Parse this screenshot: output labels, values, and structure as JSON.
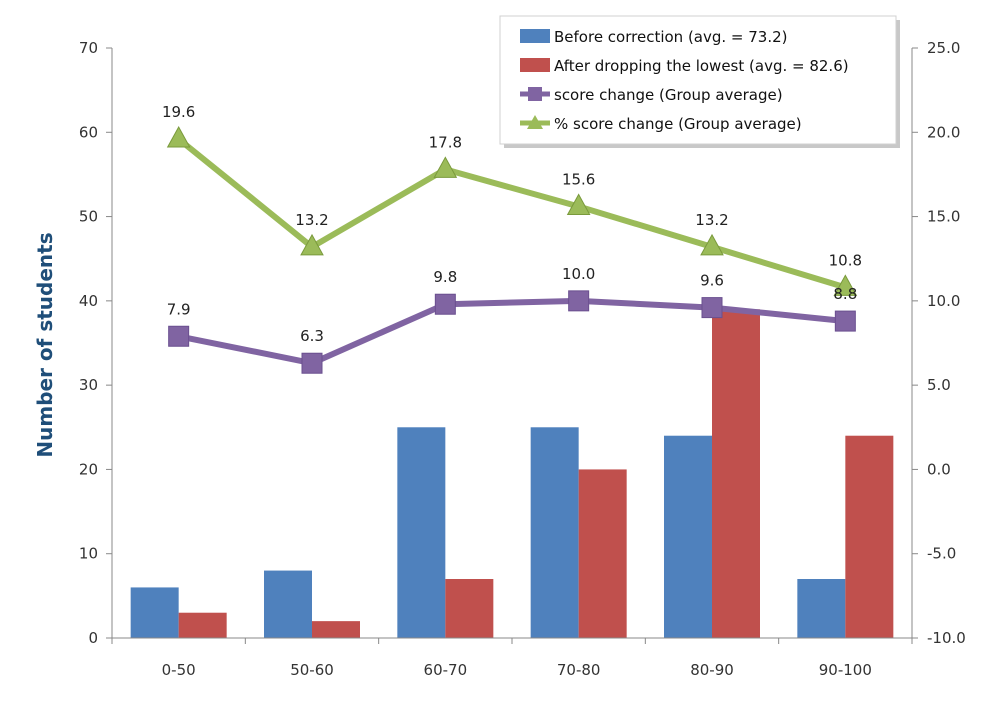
{
  "chart_data": {
    "type": "bar",
    "title": "",
    "xlabel": "",
    "ylabel": "Number of students",
    "y2label": "",
    "categories": [
      "0-50",
      "50-60",
      "60-70",
      "70-80",
      "80-90",
      "90-100"
    ],
    "ylim": [
      0,
      70
    ],
    "yticks": [
      "0",
      "10",
      "20",
      "30",
      "40",
      "50",
      "60",
      "70"
    ],
    "y2lim": [
      -10,
      25
    ],
    "y2ticks": [
      "-10.0",
      "-5.0",
      "0.0",
      "5.0",
      "10.0",
      "15.0",
      "20.0",
      "25.0"
    ],
    "grid": false,
    "legend_position": "top-right",
    "series": [
      {
        "name": "Before correction (avg. = 73.2)",
        "kind": "bar",
        "axis": "left",
        "color": "#4f81bd",
        "values": [
          6,
          8,
          25,
          25,
          24,
          7
        ]
      },
      {
        "name": "After dropping the lowest (avg. = 82.6)",
        "kind": "bar",
        "axis": "left",
        "color": "#c0504d",
        "values": [
          3,
          2,
          7,
          20,
          39,
          24
        ]
      },
      {
        "name": "score change (Group average)",
        "kind": "line",
        "axis": "right",
        "marker": "square",
        "color": "#8064a2",
        "values": [
          7.9,
          6.3,
          9.8,
          10.0,
          9.6,
          8.8
        ],
        "labels": [
          "7.9",
          "6.3",
          "9.8",
          "10.0",
          "9.6",
          "8.8"
        ]
      },
      {
        "name": "% score change (Group average)",
        "kind": "line",
        "axis": "right",
        "marker": "triangle",
        "color": "#9bbb59",
        "values": [
          19.6,
          13.2,
          17.8,
          15.6,
          13.2,
          10.8
        ],
        "labels": [
          "19.6",
          "13.2",
          "17.8",
          "15.6",
          "13.2",
          "10.8"
        ]
      }
    ]
  }
}
